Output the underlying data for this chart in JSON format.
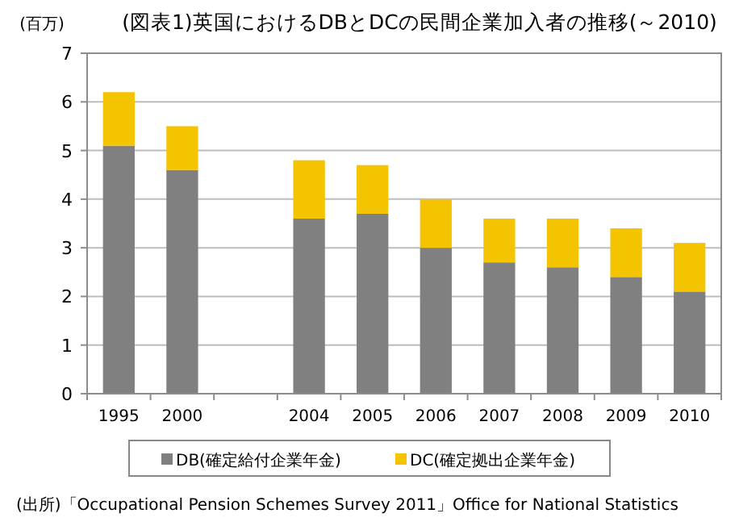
{
  "chart_data": {
    "type": "bar",
    "stacked": true,
    "title": "(図表1)英国におけるDBとDCの民間企業加入者の推移(～2010)",
    "ylabel": "(百万)",
    "categories": [
      "1995",
      "2000",
      null,
      "2004",
      "2005",
      "2006",
      "2007",
      "2008",
      "2009",
      "2010"
    ],
    "series": [
      {
        "name": "DB(確定給付企業年金)",
        "color": "#808080",
        "values": [
          5.1,
          4.6,
          null,
          3.6,
          3.7,
          3.0,
          2.7,
          2.6,
          2.4,
          2.1
        ]
      },
      {
        "name": "DC(確定拠出企業年金)",
        "color": "#f5c400",
        "values": [
          1.1,
          0.9,
          null,
          1.2,
          1.0,
          1.0,
          0.9,
          1.0,
          1.0,
          1.0
        ]
      }
    ],
    "ylim": [
      0,
      7
    ],
    "yticks": [
      0,
      1,
      2,
      3,
      4,
      5,
      6,
      7
    ],
    "grid": "y",
    "legend": "bottom",
    "annotations": [
      "(出所)「Occupational Pension Schemes Survey 2011」Office for National Statistics"
    ]
  }
}
